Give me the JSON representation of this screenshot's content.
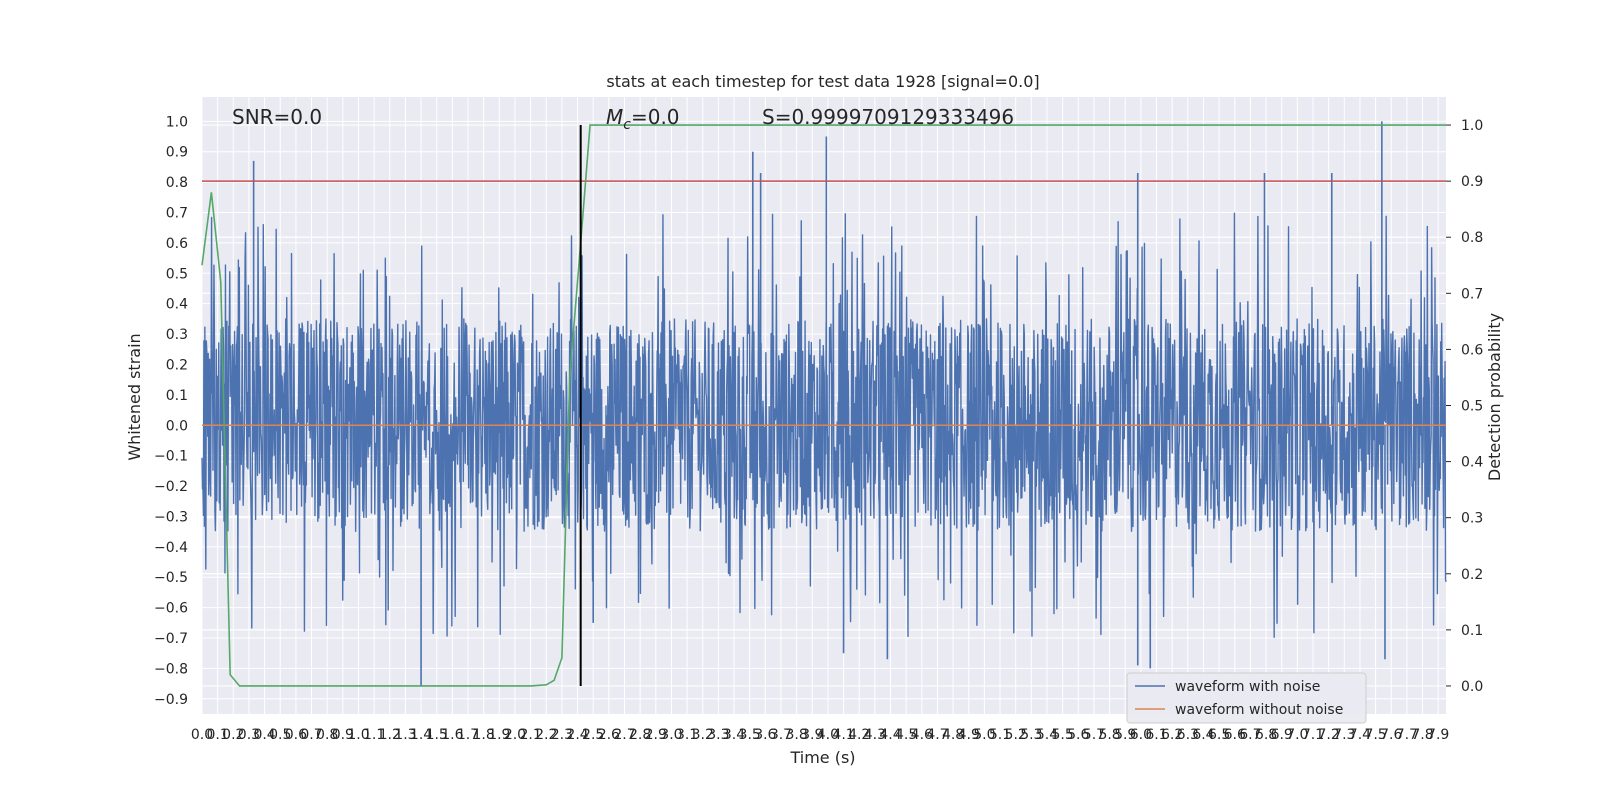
{
  "chart_data": {
    "type": "line",
    "title": "stats at each timestep for test data 1928 [signal=0.0]",
    "xlabel": "Time (s)",
    "ylabel": "Whitened strain",
    "y2label": "Detection probability",
    "xlim": [
      0.0,
      7.95
    ],
    "ylim": [
      -0.95,
      1.08
    ],
    "y2lim": [
      -0.05,
      1.05
    ],
    "x_ticks": [
      0.0,
      0.1,
      0.2,
      0.3,
      0.4,
      0.5,
      0.6,
      0.7,
      0.8,
      0.9,
      1.0,
      1.1,
      1.2,
      1.3,
      1.4,
      1.5,
      1.6,
      1.7,
      1.8,
      1.9,
      2.0,
      2.1,
      2.2,
      2.3,
      2.4,
      2.5,
      2.6,
      2.7,
      2.8,
      2.9,
      3.0,
      3.1,
      3.2,
      3.3,
      3.4,
      3.5,
      3.6,
      3.7,
      3.8,
      3.9,
      4.0,
      4.1,
      4.2,
      4.3,
      4.4,
      4.5,
      4.6,
      4.7,
      4.8,
      4.9,
      5.0,
      5.1,
      5.2,
      5.3,
      5.4,
      5.5,
      5.6,
      5.7,
      5.8,
      5.9,
      6.0,
      6.1,
      6.2,
      6.3,
      6.4,
      6.5,
      6.6,
      6.7,
      6.8,
      6.9,
      7.0,
      7.1,
      7.2,
      7.3,
      7.4,
      7.5,
      7.6,
      7.7,
      7.8,
      7.9
    ],
    "x_tick_labels": [
      "0.0",
      "0.1",
      "0.2",
      "0.3",
      "0.4",
      "0.5",
      "0.6",
      "0.7",
      "0.8",
      "0.9",
      "1.0",
      "1.1",
      "1.2",
      "1.3",
      "1.4",
      "1.5",
      "1.6",
      "1.7",
      "1.8",
      "1.9",
      "2.0",
      "2.1",
      "2.2",
      "2.3",
      "2.4",
      "2.5",
      "2.6",
      "2.7",
      "2.8",
      "2.9",
      "3.0",
      "3.1",
      "3.2",
      "3.3",
      "3.4",
      "3.5",
      "3.6",
      "3.7",
      "3.8",
      "3.9",
      "4.0",
      "4.1",
      "4.2",
      "4.3",
      "4.4",
      "4.5",
      "4.6",
      "4.7",
      "4.8",
      "4.9",
      "5.0",
      "5.1",
      "5.2",
      "5.3",
      "5.4",
      "5.5",
      "5.6",
      "5.7",
      "5.8",
      "5.9",
      "6.0",
      "6.1",
      "6.2",
      "6.3",
      "6.4",
      "6.5",
      "6.6",
      "6.7",
      "6.8",
      "6.9",
      "7.0",
      "7.1",
      "7.2",
      "7.3",
      "7.4",
      "7.5",
      "7.6",
      "7.7",
      "7.8",
      "7.9"
    ],
    "y_ticks": [
      -0.9,
      -0.8,
      -0.7,
      -0.6,
      -0.5,
      -0.4,
      -0.3,
      -0.2,
      -0.1,
      0.0,
      0.1,
      0.2,
      0.3,
      0.4,
      0.5,
      0.6,
      0.7,
      0.8,
      0.9,
      1.0
    ],
    "y_tick_labels": [
      "−0.9",
      "−0.8",
      "−0.7",
      "−0.6",
      "−0.5",
      "−0.4",
      "−0.3",
      "−0.2",
      "−0.1",
      "0.0",
      "0.1",
      "0.2",
      "0.3",
      "0.4",
      "0.5",
      "0.6",
      "0.7",
      "0.8",
      "0.9",
      "1.0"
    ],
    "y2_ticks": [
      0.0,
      0.1,
      0.2,
      0.3,
      0.4,
      0.5,
      0.6,
      0.7,
      0.8,
      0.9,
      1.0
    ],
    "y2_tick_labels": [
      "0.0",
      "0.1",
      "0.2",
      "0.3",
      "0.4",
      "0.5",
      "0.6",
      "0.7",
      "0.8",
      "0.9",
      "1.0"
    ],
    "annotations": {
      "snr": "SNR=0.0",
      "mc_symbol": "M",
      "mc_sub": "c",
      "mc_value": "=0.0",
      "s": "S=0.9999709129333496"
    },
    "threshold_y2": 0.9,
    "marker_x": 2.42,
    "series": [
      {
        "name": "waveform with noise",
        "axis": "left",
        "color": "#4c72b0",
        "kind": "noise",
        "noise_envelope": [
          -0.5,
          0.5
        ],
        "spikes": [
          {
            "x": 0.33,
            "y": 0.87
          },
          {
            "x": 1.4,
            "y": -0.86
          },
          {
            "x": 2.5,
            "y": -0.65
          },
          {
            "x": 3.52,
            "y": 0.9
          },
          {
            "x": 3.57,
            "y": 0.83
          },
          {
            "x": 3.99,
            "y": 0.95
          },
          {
            "x": 4.1,
            "y": -0.75
          },
          {
            "x": 4.38,
            "y": -0.77
          },
          {
            "x": 5.98,
            "y": 0.83
          },
          {
            "x": 5.98,
            "y": -0.79
          },
          {
            "x": 6.06,
            "y": -0.8
          },
          {
            "x": 6.79,
            "y": 0.83
          },
          {
            "x": 7.22,
            "y": 0.83
          },
          {
            "x": 7.54,
            "y": 1.0
          },
          {
            "x": 7.56,
            "y": -0.77
          }
        ]
      },
      {
        "name": "waveform without noise",
        "axis": "left",
        "color": "#dd8452",
        "x": [
          0.0,
          7.95
        ],
        "y": [
          0.0,
          0.0
        ]
      },
      {
        "name": "",
        "axis": "right",
        "color": "#55a868",
        "x": [
          0.0,
          0.06,
          0.12,
          0.18,
          0.24,
          0.5,
          1.0,
          1.5,
          2.0,
          2.1,
          2.2,
          2.25,
          2.3,
          2.35,
          2.42,
          2.48,
          2.6,
          3.0,
          7.95
        ],
        "y": [
          0.75,
          0.88,
          0.72,
          0.02,
          0.0,
          0.0,
          0.0,
          0.0,
          0.0,
          0.0,
          0.002,
          0.01,
          0.05,
          0.55,
          0.79,
          1.0,
          1.0,
          1.0,
          1.0
        ]
      }
    ],
    "legend": {
      "position": "lower right",
      "entries": [
        {
          "label": "waveform with noise",
          "color": "#4c72b0"
        },
        {
          "label": "waveform without noise",
          "color": "#dd8452"
        }
      ]
    },
    "colors": {
      "plot_bg": "#eaeaf2",
      "grid": "#ffffff",
      "threshold": "#c44e52",
      "marker": "#000000"
    },
    "grid": true
  }
}
